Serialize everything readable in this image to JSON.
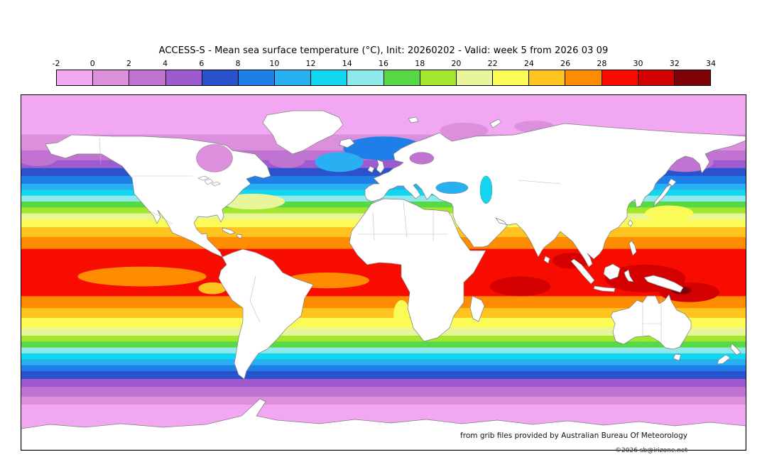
{
  "title": "ACCESS-S - Mean sea surface temperature (°C), Init: 20260202 - Valid: week 5 from 2026 03 09",
  "footer": {
    "attribution": "from grib files provided by Australian Bureau Of Meteorology",
    "copyright": "©2026 sb@irizone.net"
  },
  "chart_data": {
    "type": "heatmap",
    "title": "ACCESS-S - Mean sea surface temperature (°C), Init: 20260202 - Valid: week 5 from 2026 03 09",
    "variable": "Mean sea surface temperature",
    "unit": "°C",
    "init_date": "20260202",
    "valid": "week 5 from 2026 03 09",
    "colorbar": {
      "unit": "°C",
      "ticks": [
        -2,
        0,
        2,
        4,
        6,
        8,
        10,
        12,
        14,
        16,
        18,
        20,
        22,
        24,
        26,
        28,
        30,
        32,
        34
      ],
      "segments": [
        {
          "from": -2,
          "to": 0,
          "color": "#f2a7f2"
        },
        {
          "from": 0,
          "to": 2,
          "color": "#dc8fdc"
        },
        {
          "from": 2,
          "to": 4,
          "color": "#c173d2"
        },
        {
          "from": 4,
          "to": 6,
          "color": "#9e5bd0"
        },
        {
          "from": 6,
          "to": 8,
          "color": "#2a52cc"
        },
        {
          "from": 8,
          "to": 10,
          "color": "#1f7fe8"
        },
        {
          "from": 10,
          "to": 12,
          "color": "#29b0f2"
        },
        {
          "from": 12,
          "to": 14,
          "color": "#12d6f0"
        },
        {
          "from": 14,
          "to": 16,
          "color": "#8eeaea"
        },
        {
          "from": 16,
          "to": 18,
          "color": "#57d846"
        },
        {
          "from": 18,
          "to": 20,
          "color": "#a2e62e"
        },
        {
          "from": 20,
          "to": 22,
          "color": "#e8f59b"
        },
        {
          "from": 22,
          "to": 24,
          "color": "#fbfb57"
        },
        {
          "from": 24,
          "to": 26,
          "color": "#ffc31f"
        },
        {
          "from": 26,
          "to": 28,
          "color": "#ff8c00"
        },
        {
          "from": 28,
          "to": 30,
          "color": "#f80c00"
        },
        {
          "from": 30,
          "to": 32,
          "color": "#d40000"
        },
        {
          "from": 32,
          "to": 34,
          "color": "#7e0308"
        }
      ]
    },
    "map": {
      "projection": "equirectangular",
      "lon_range": [
        -180,
        180
      ],
      "lat_range": [
        -90,
        90
      ],
      "zonal_bands": [
        {
          "lat_from": 90,
          "lat_to": 70,
          "temp": -2
        },
        {
          "lat_from": 70,
          "lat_to": 62,
          "temp": 0
        },
        {
          "lat_from": 62,
          "lat_to": 57,
          "temp": 2
        },
        {
          "lat_from": 57,
          "lat_to": 53,
          "temp": 4
        },
        {
          "lat_from": 53,
          "lat_to": 49,
          "temp": 6
        },
        {
          "lat_from": 49,
          "lat_to": 45,
          "temp": 8
        },
        {
          "lat_from": 45,
          "lat_to": 42,
          "temp": 10
        },
        {
          "lat_from": 42,
          "lat_to": 39,
          "temp": 12
        },
        {
          "lat_from": 39,
          "lat_to": 36,
          "temp": 14
        },
        {
          "lat_from": 36,
          "lat_to": 33,
          "temp": 16
        },
        {
          "lat_from": 33,
          "lat_to": 30,
          "temp": 18
        },
        {
          "lat_from": 30,
          "lat_to": 27,
          "temp": 20
        },
        {
          "lat_from": 27,
          "lat_to": 23,
          "temp": 22
        },
        {
          "lat_from": 23,
          "lat_to": 18,
          "temp": 24
        },
        {
          "lat_from": 18,
          "lat_to": 12,
          "temp": 26
        },
        {
          "lat_from": 12,
          "lat_to": -12,
          "temp": 28
        },
        {
          "lat_from": -12,
          "lat_to": -18,
          "temp": 26
        },
        {
          "lat_from": -18,
          "lat_to": -23,
          "temp": 24
        },
        {
          "lat_from": -23,
          "lat_to": -28,
          "temp": 22
        },
        {
          "lat_from": -28,
          "lat_to": -32,
          "temp": 20
        },
        {
          "lat_from": -32,
          "lat_to": -35,
          "temp": 18
        },
        {
          "lat_from": -35,
          "lat_to": -38,
          "temp": 16
        },
        {
          "lat_from": -38,
          "lat_to": -41,
          "temp": 14
        },
        {
          "lat_from": -41,
          "lat_to": -44,
          "temp": 12
        },
        {
          "lat_from": -44,
          "lat_to": -47,
          "temp": 10
        },
        {
          "lat_from": -47,
          "lat_to": -50,
          "temp": 8
        },
        {
          "lat_from": -50,
          "lat_to": -54,
          "temp": 6
        },
        {
          "lat_from": -54,
          "lat_to": -58,
          "temp": 4
        },
        {
          "lat_from": -58,
          "lat_to": -63,
          "temp": 2
        },
        {
          "lat_from": -63,
          "lat_to": -67,
          "temp": 0
        },
        {
          "lat_from": -67,
          "lat_to": -90,
          "temp": -2
        }
      ],
      "features": [
        {
          "name": "west-pacific-warm-pool",
          "lon": 130,
          "lat": -3,
          "rx_deg": 20,
          "ry_deg": 7,
          "temp": 30,
          "layer": "ocean"
        },
        {
          "name": "coral-sea-warm",
          "lon": 152,
          "lat": -10,
          "rx_deg": 15,
          "ry_deg": 5,
          "temp": 30,
          "layer": "ocean"
        },
        {
          "name": "indian-ocean-warm",
          "lon": 68,
          "lat": -7,
          "rx_deg": 15,
          "ry_deg": 5,
          "temp": 30,
          "layer": "ocean"
        },
        {
          "name": "bay-of-bengal-warm",
          "lon": 93,
          "lat": 6,
          "rx_deg": 9,
          "ry_deg": 4,
          "temp": 30,
          "layer": "ocean"
        },
        {
          "name": "warm-pool-max",
          "lon": 148,
          "lat": -9,
          "rx_deg": 5,
          "ry_deg": 2,
          "temp": 32,
          "layer": "ocean"
        },
        {
          "name": "east-pacific-cool-tongue",
          "lon": -120,
          "lat": -2,
          "rx_deg": 32,
          "ry_deg": 5,
          "temp": 26,
          "layer": "ocean"
        },
        {
          "name": "peru-coastal-cool",
          "lon": -85,
          "lat": -8,
          "rx_deg": 7,
          "ry_deg": 3,
          "temp": 24,
          "layer": "ocean"
        },
        {
          "name": "atlantic-equatorial-cool",
          "lon": -28,
          "lat": -4,
          "rx_deg": 21,
          "ry_deg": 4,
          "temp": 26,
          "layer": "ocean"
        },
        {
          "name": "benguela-cool",
          "lon": 9,
          "lat": -21,
          "rx_deg": 4,
          "ry_deg": 7,
          "temp": 22,
          "layer": "ocean"
        },
        {
          "name": "north-atlantic-drift",
          "lon": 0,
          "lat": 63,
          "rx_deg": 20,
          "ry_deg": 6,
          "temp": 8,
          "layer": "ocean"
        },
        {
          "name": "iceland-basin-mild",
          "lon": -22,
          "lat": 56,
          "rx_deg": 12,
          "ry_deg": 5,
          "temp": 10,
          "layer": "ocean"
        },
        {
          "name": "kuroshio-warm",
          "lon": 142,
          "lat": 30,
          "rx_deg": 12,
          "ry_deg": 4,
          "temp": 22,
          "layer": "ocean"
        },
        {
          "name": "gulf-stream-warm",
          "lon": -65,
          "lat": 36,
          "rx_deg": 16,
          "ry_deg": 4,
          "temp": 20,
          "layer": "ocean"
        },
        {
          "name": "okhotsk-cold",
          "lon": 150,
          "lat": 56,
          "rx_deg": 14,
          "ry_deg": 5,
          "temp": 2,
          "layer": "ocean"
        },
        {
          "name": "bering-sea-cold",
          "lon": -172,
          "lat": 58,
          "rx_deg": 10,
          "ry_deg": 4,
          "temp": 2,
          "layer": "ocean"
        },
        {
          "name": "labrador-sea-cold",
          "lon": -48,
          "lat": 57,
          "rx_deg": 9,
          "ry_deg": 4,
          "temp": 2,
          "layer": "ocean"
        },
        {
          "name": "barents-cold",
          "lon": 40,
          "lat": 72,
          "rx_deg": 12,
          "ry_deg": 4,
          "temp": 0,
          "layer": "ocean"
        },
        {
          "name": "kara-cold",
          "lon": 75,
          "lat": 74,
          "rx_deg": 10,
          "ry_deg": 3,
          "temp": 0,
          "layer": "ocean"
        },
        {
          "name": "hudson-bay",
          "lon": -84,
          "lat": 58,
          "rx_deg": 9,
          "ry_deg": 7,
          "temp": 0,
          "layer": "overland"
        },
        {
          "name": "baltic-sea",
          "lon": 19,
          "lat": 58,
          "rx_deg": 6,
          "ry_deg": 3,
          "temp": 2,
          "layer": "overland"
        },
        {
          "name": "black-sea",
          "lon": 34,
          "lat": 43,
          "rx_deg": 8,
          "ry_deg": 3,
          "temp": 10,
          "layer": "overland"
        },
        {
          "name": "caspian-sea",
          "lon": 51,
          "lat": 42,
          "rx_deg": 3,
          "ry_deg": 7,
          "temp": 12,
          "layer": "overland"
        }
      ]
    }
  }
}
